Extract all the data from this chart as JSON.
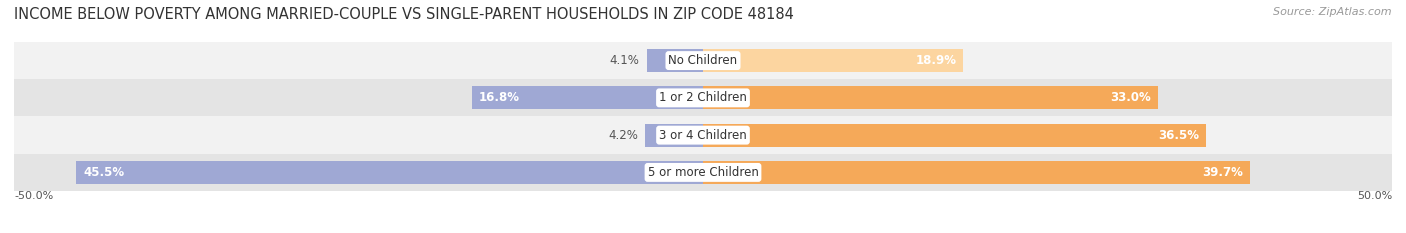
{
  "title": "INCOME BELOW POVERTY AMONG MARRIED-COUPLE VS SINGLE-PARENT HOUSEHOLDS IN ZIP CODE 48184",
  "source": "Source: ZipAtlas.com",
  "categories": [
    "No Children",
    "1 or 2 Children",
    "3 or 4 Children",
    "5 or more Children"
  ],
  "married_values": [
    4.1,
    16.8,
    4.2,
    45.5
  ],
  "single_values": [
    18.9,
    33.0,
    36.5,
    39.7
  ],
  "married_color": "#9fa8d4",
  "single_color": "#f5a959",
  "single_color_light": "#fcd5a0",
  "row_bg_even": "#f2f2f2",
  "row_bg_odd": "#e4e4e4",
  "title_fontsize": 10.5,
  "source_fontsize": 8,
  "label_fontsize": 8.5,
  "value_fontsize": 8.5,
  "axis_label_fontsize": 8,
  "xlim": 50.0,
  "background_color": "#ffffff"
}
